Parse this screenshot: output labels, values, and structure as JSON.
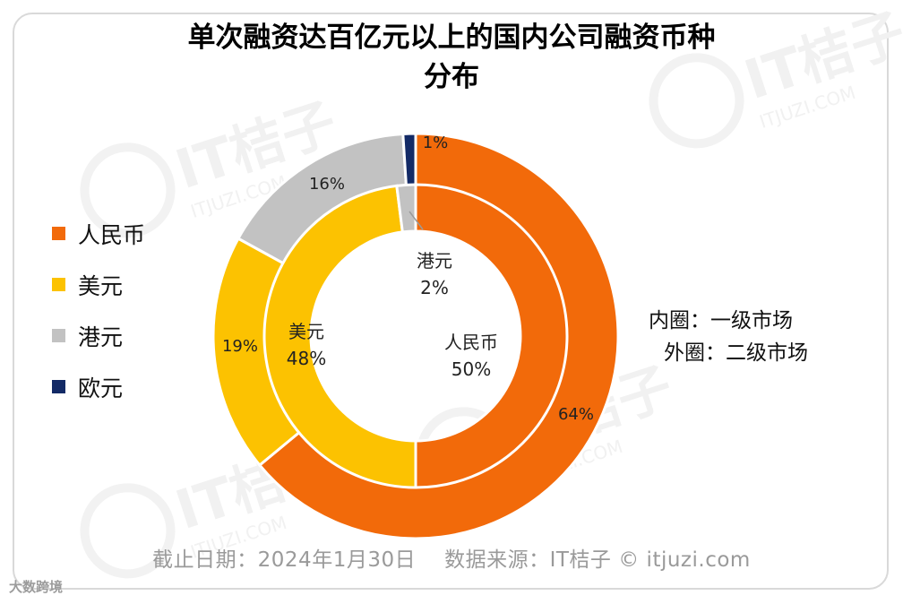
{
  "title_lines": [
    "单次融资达百亿元以上的国内公司融资币种",
    "分布"
  ],
  "legend": [
    {
      "label": "人民币",
      "color": "#f26a0a"
    },
    {
      "label": "美元",
      "color": "#fcc201"
    },
    {
      "label": "港元",
      "color": "#c2c2c2"
    },
    {
      "label": "欧元",
      "color": "#132a66"
    }
  ],
  "note": {
    "inner": "内圈：一级市场",
    "outer": "外圈：二级市场"
  },
  "footer": {
    "date": "截止日期：2024年1月30日",
    "source": "数据来源：IT桔子 © itjuzi.com"
  },
  "corner_mark": "大数跨境",
  "watermark": {
    "brand": "IT桔子",
    "site": "ITJUZI.COM"
  },
  "chart_data": {
    "type": "donut",
    "rings": [
      {
        "name": "内圈",
        "market": "一级市场",
        "slices": [
          {
            "label": "人民币",
            "value": 50,
            "text": "50%",
            "color": "#f26a0a"
          },
          {
            "label": "美元",
            "value": 48,
            "text": "48%",
            "color": "#fcc201"
          },
          {
            "label": "港元",
            "value": 2,
            "text": "2%",
            "color": "#c2c2c2"
          }
        ]
      },
      {
        "name": "外圈",
        "market": "二级市场",
        "slices": [
          {
            "label": "人民币",
            "value": 64,
            "text": "64%",
            "color": "#f26a0a"
          },
          {
            "label": "美元",
            "value": 19,
            "text": "19%",
            "color": "#fcc201"
          },
          {
            "label": "港元",
            "value": 16,
            "text": "16%",
            "color": "#c2c2c2"
          },
          {
            "label": "欧元",
            "value": 1,
            "text": "1%",
            "color": "#132a66"
          }
        ]
      }
    ]
  }
}
